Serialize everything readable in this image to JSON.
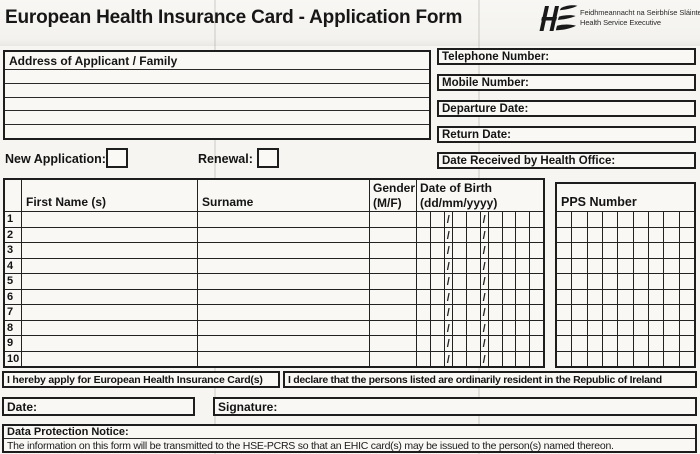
{
  "header": {
    "title": "European Health Insurance Card - Application Form",
    "logo": {
      "org_irish": "Feidhmeannacht na Seirbhíse Sláinte",
      "org_english": "Health Service Executive"
    }
  },
  "address_box": {
    "label": "Address of Applicant / Family",
    "line_count": 5
  },
  "contact_fields": [
    {
      "label": "Telephone Number:"
    },
    {
      "label": "Mobile Number:"
    },
    {
      "label": "Departure Date:"
    },
    {
      "label": "Return Date:"
    },
    {
      "label": "Date Received by Health Office:"
    }
  ],
  "application_type": {
    "new_label": "New Application:",
    "renewal_label": "Renewal:"
  },
  "persons_table": {
    "columns": {
      "first_name": "First Name (s)",
      "surname": "Surname",
      "gender_line1": "Gender",
      "gender_line2": "(M/F)",
      "dob_line1": "Date of Birth",
      "dob_line2": "(dd/mm/yyyy)"
    },
    "row_numbers": [
      "1",
      "2",
      "3",
      "4",
      "5",
      "6",
      "7",
      "8",
      "9",
      "10"
    ],
    "dob_pattern": [
      "d",
      "d",
      "/",
      "d",
      "d",
      "/",
      "y",
      "y",
      "y",
      "y"
    ],
    "dob_separator": "/"
  },
  "pps_box": {
    "label": "PPS Number",
    "columns": 9,
    "rows": 10
  },
  "declaration": {
    "apply_text": "I hereby apply for European Health Insurance Card(s)",
    "declare_text": "I declare that the persons listed are ordinarily resident in the Republic of Ireland"
  },
  "signature_row": {
    "date_label": "Date:",
    "signature_label": "Signature:"
  },
  "data_protection": {
    "heading": "Data Protection Notice:",
    "body": "The information on this form will be transmitted to the HSE-PCRS so that an EHIC card(s) may be issued to the person(s) named thereon."
  },
  "colors": {
    "border": "#1d1d1d",
    "paper": "#f6f5f1",
    "ink": "#141414"
  }
}
